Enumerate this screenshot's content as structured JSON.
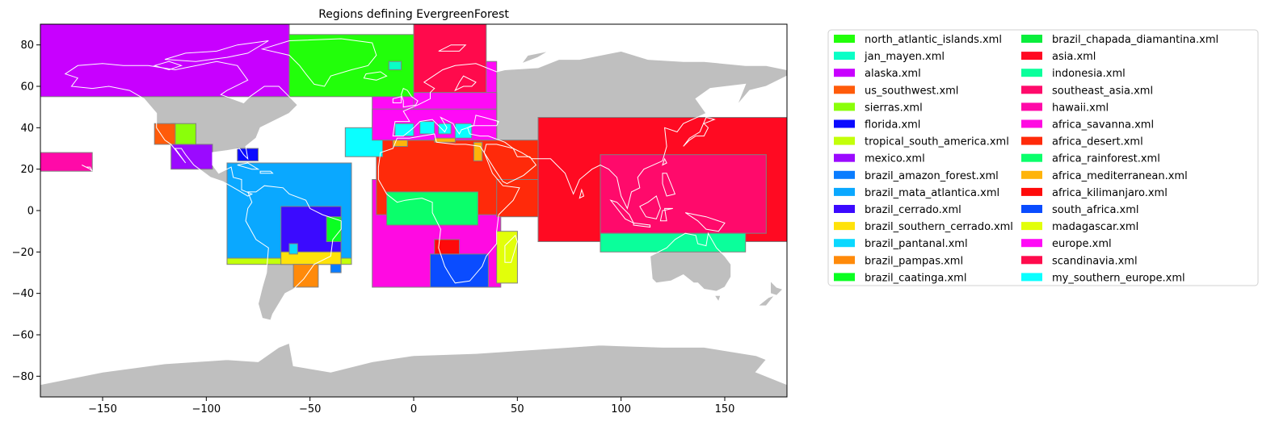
{
  "title": "Regions defining EvergreenForest",
  "map": {
    "xlim": [
      -180,
      180
    ],
    "ylim": [
      -90,
      90
    ],
    "xticks": [
      -150,
      -100,
      -50,
      0,
      50,
      100,
      150
    ],
    "yticks": [
      -80,
      -60,
      -40,
      -20,
      0,
      20,
      40,
      60,
      80
    ],
    "land_color": "#bfbfbf",
    "coastline_color": "#ffffff",
    "frame_color": "#000000"
  },
  "regions": [
    {
      "name": "north_atlantic_islands.xml",
      "color": "#22ff0a",
      "lon": [
        -60,
        0
      ],
      "lat": [
        55,
        85
      ]
    },
    {
      "name": "jan_mayen.xml",
      "color": "#0affc6",
      "lon": [
        -12,
        -6
      ],
      "lat": [
        68,
        72
      ]
    },
    {
      "name": "alaska.xml",
      "color": "#c800ff",
      "lon": [
        -180,
        -60
      ],
      "lat": [
        55,
        90
      ]
    },
    {
      "name": "us_southwest.xml",
      "color": "#ff5b0a",
      "lon": [
        -125,
        -115
      ],
      "lat": [
        32,
        42
      ]
    },
    {
      "name": "sierras.xml",
      "color": "#8aff0a",
      "lon": [
        -117,
        -105
      ],
      "lat": [
        32,
        42
      ]
    },
    {
      "name": "florida.xml",
      "color": "#0a0aff",
      "lon": [
        -85,
        -75
      ],
      "lat": [
        24,
        30
      ]
    },
    {
      "name": "tropical_south_america.xml",
      "color": "#c3ff0a",
      "lon": [
        -90,
        -30
      ],
      "lat": [
        -26,
        -23
      ]
    },
    {
      "name": "mexico.xml",
      "color": "#9b0aff",
      "lon": [
        -117,
        -97
      ],
      "lat": [
        20,
        32
      ]
    },
    {
      "name": "brazil_amazon_forest.xml",
      "color": "#0a7cff",
      "lon": [
        -40,
        -35
      ],
      "lat": [
        -30,
        -26
      ]
    },
    {
      "name": "brazil_mata_atlantica.xml",
      "color": "#0aa8ff",
      "lon": [
        -90,
        -30
      ],
      "lat": [
        -23,
        23
      ]
    },
    {
      "name": "brazil_cerrado.xml",
      "color": "#3b0aff",
      "lon": [
        -64,
        -35
      ],
      "lat": [
        -20,
        2
      ]
    },
    {
      "name": "brazil_southern_cerrado.xml",
      "color": "#ffe20a",
      "lon": [
        -64,
        -35
      ],
      "lat": [
        -26,
        -20
      ]
    },
    {
      "name": "brazil_pantanal.xml",
      "color": "#0ad8ff",
      "lon": [
        -60,
        -56
      ],
      "lat": [
        -21,
        -16
      ]
    },
    {
      "name": "brazil_pampas.xml",
      "color": "#ff8a0a",
      "lon": [
        -58,
        -46
      ],
      "lat": [
        -37,
        -26
      ]
    },
    {
      "name": "brazil_caatinga.xml",
      "color": "#0aff22",
      "lon": [
        -42,
        -35
      ],
      "lat": [
        -15,
        -3
      ]
    },
    {
      "name": "brazil_chapada_diamantina.xml",
      "color": "#0aee3c",
      "lon": [
        0,
        0
      ],
      "lat": [
        0,
        0
      ]
    },
    {
      "name": "asia.xml",
      "color": "#ff0a22",
      "lon": [
        60,
        180
      ],
      "lat": [
        -15,
        45
      ]
    },
    {
      "name": "indonesia.xml",
      "color": "#0aff9b",
      "lon": [
        90,
        160
      ],
      "lat": [
        -20,
        -11
      ]
    },
    {
      "name": "southeast_asia.xml",
      "color": "#ff0a6b",
      "lon": [
        90,
        170
      ],
      "lat": [
        -11,
        27
      ]
    },
    {
      "name": "hawaii.xml",
      "color": "#ff0aa8",
      "lon": [
        -180,
        -155
      ],
      "lat": [
        19,
        28
      ]
    },
    {
      "name": "africa_savanna.xml",
      "color": "#ff0ae2",
      "lon": [
        -20,
        42
      ],
      "lat": [
        -37,
        15
      ]
    },
    {
      "name": "africa_desert.xml",
      "color": "#ff2a0a",
      "lon": [
        -18,
        60
      ],
      "lat": [
        -2,
        34
      ]
    },
    {
      "name": "africa_rainforest.xml",
      "color": "#0aff6b",
      "lon": [
        -13,
        31
      ],
      "lat": [
        -7,
        9
      ]
    },
    {
      "name": "africa_mediterranean.xml",
      "color": "#ffb40a",
      "lon": [
        -10,
        -3
      ],
      "lat": [
        31,
        35
      ]
    },
    {
      "name": "africa_kilimanjaro.xml",
      "color": "#ff0a0a",
      "lon": [
        10,
        22
      ],
      "lat": [
        -21,
        -14
      ]
    },
    {
      "name": "south_africa.xml",
      "color": "#0a4cff",
      "lon": [
        8,
        36
      ],
      "lat": [
        -37,
        -21
      ]
    },
    {
      "name": "madagascar.xml",
      "color": "#e2ff0a",
      "lon": [
        40,
        50
      ],
      "lat": [
        -35,
        -10
      ]
    },
    {
      "name": "europe.xml",
      "color": "#ff0af6",
      "lon": [
        -20,
        40
      ],
      "lat": [
        34,
        72
      ]
    },
    {
      "name": "scandinavia.xml",
      "color": "#ff0a4c",
      "lon": [
        0,
        35
      ],
      "lat": [
        57,
        90
      ]
    },
    {
      "name": "my_southern_europe.xml",
      "color": "#0affff",
      "lon": [
        -33,
        -15
      ],
      "lat": [
        26,
        40
      ]
    }
  ],
  "extra_region_patches": [
    {
      "region": "europe.xml",
      "color": "#ff0af6",
      "lon": [
        -20,
        40
      ],
      "lat": [
        34,
        49
      ]
    },
    {
      "region": "europe.xml",
      "color": "#ff0af6",
      "lon": [
        0,
        40
      ],
      "lat": [
        49,
        57
      ]
    },
    {
      "region": "africa_desert.xml",
      "color": "#ff2a0a",
      "lon": [
        40,
        60
      ],
      "lat": [
        -3,
        15
      ]
    },
    {
      "region": "my_southern_europe.xml",
      "color": "#0affff",
      "lon": [
        -9,
        0
      ],
      "lat": [
        36,
        42
      ]
    },
    {
      "region": "my_southern_europe.xml",
      "color": "#0affff",
      "lon": [
        3,
        10
      ],
      "lat": [
        37,
        43
      ]
    },
    {
      "region": "my_southern_europe.xml",
      "color": "#0affff",
      "lon": [
        12,
        18
      ],
      "lat": [
        37,
        42
      ]
    },
    {
      "region": "my_southern_europe.xml",
      "color": "#0affff",
      "lon": [
        20,
        28
      ],
      "lat": [
        35,
        42
      ]
    },
    {
      "region": "africa_mediterranean.xml",
      "color": "#ffb40a",
      "lon": [
        10,
        20
      ],
      "lat": [
        33,
        35
      ]
    },
    {
      "region": "africa_mediterranean.xml",
      "color": "#ffb40a",
      "lon": [
        29,
        33
      ],
      "lat": [
        24,
        33
      ]
    }
  ]
}
